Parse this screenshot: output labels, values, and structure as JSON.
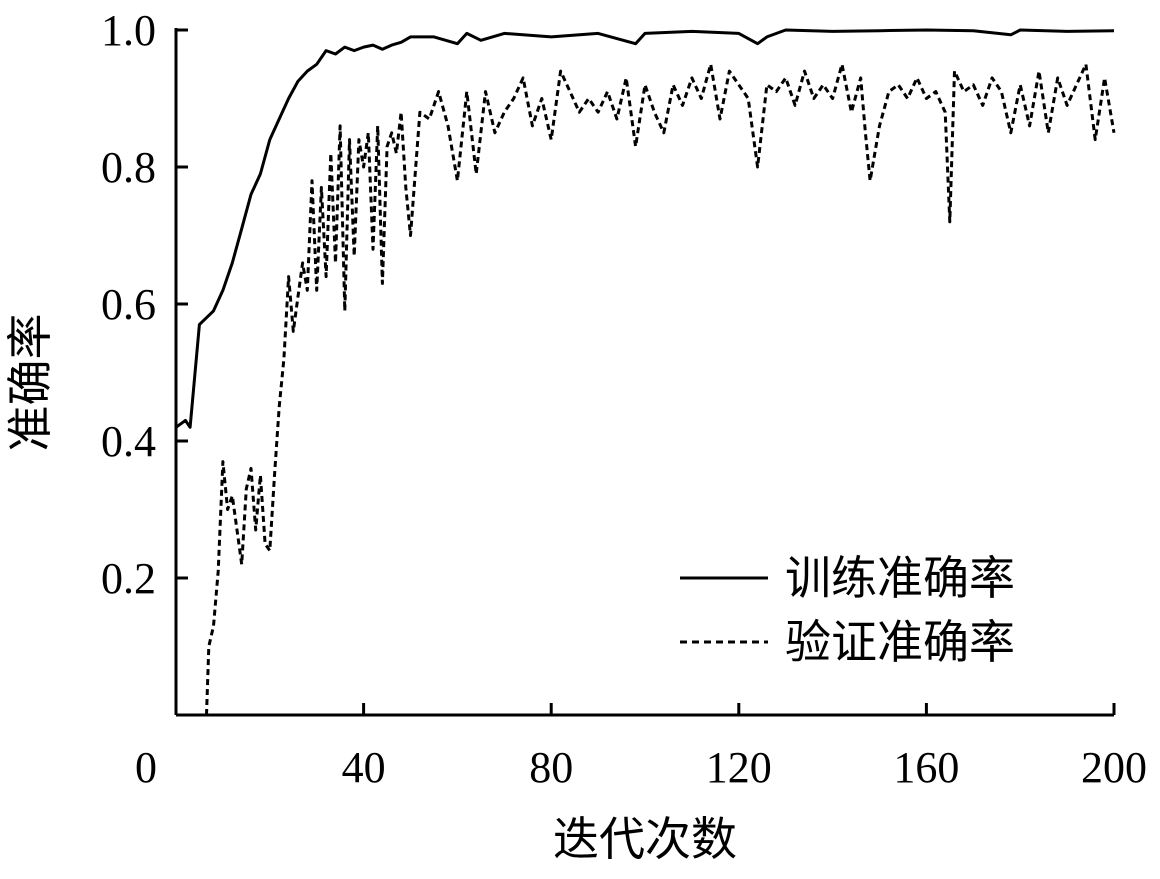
{
  "chart_data": {
    "type": "line",
    "xlabel": "迭代次数",
    "ylabel": "准确率",
    "xlim": [
      0,
      200
    ],
    "ylim": [
      0,
      1.0
    ],
    "xticks": [
      0,
      40,
      80,
      120,
      160,
      200
    ],
    "yticks": [
      0.2,
      0.4,
      0.6,
      0.8,
      1.0
    ],
    "x_tick_labels": [
      "0",
      "40",
      "80",
      "120",
      "160",
      "200"
    ],
    "y_tick_labels": [
      "0.2",
      "0.4",
      "0.6",
      "0.8",
      "1.0"
    ],
    "grid": false,
    "legend_position": "bottom-right",
    "series": [
      {
        "name": "训练准确率",
        "style": "solid",
        "color": "#000000",
        "x": [
          0,
          2,
          3,
          5,
          8,
          10,
          12,
          14,
          16,
          18,
          20,
          22,
          24,
          26,
          28,
          30,
          32,
          34,
          36,
          38,
          40,
          42,
          44,
          46,
          48,
          50,
          55,
          60,
          62,
          65,
          70,
          80,
          90,
          98,
          100,
          110,
          120,
          124,
          126,
          130,
          140,
          150,
          160,
          170,
          178,
          180,
          190,
          200
        ],
        "y": [
          0.42,
          0.43,
          0.42,
          0.57,
          0.59,
          0.62,
          0.66,
          0.71,
          0.76,
          0.79,
          0.84,
          0.87,
          0.9,
          0.925,
          0.94,
          0.95,
          0.97,
          0.965,
          0.975,
          0.97,
          0.975,
          0.978,
          0.972,
          0.978,
          0.982,
          0.99,
          0.99,
          0.98,
          0.995,
          0.985,
          0.995,
          0.99,
          0.995,
          0.98,
          0.995,
          0.998,
          0.995,
          0.98,
          0.99,
          1.0,
          0.998,
          0.999,
          1.0,
          0.999,
          0.993,
          1.0,
          0.998,
          0.999
        ]
      },
      {
        "name": "验证准确率",
        "style": "dashed",
        "color": "#000000",
        "x": [
          6.5,
          7,
          8,
          9,
          10,
          11,
          12,
          13,
          14,
          15,
          16,
          17,
          18,
          19,
          20,
          21,
          22,
          23,
          24,
          25,
          26,
          27,
          28,
          29,
          30,
          31,
          32,
          33,
          34,
          35,
          36,
          37,
          38,
          39,
          40,
          41,
          42,
          43,
          44,
          45,
          46,
          47,
          48,
          49,
          50,
          52,
          54,
          56,
          58,
          60,
          62,
          64,
          66,
          68,
          70,
          72,
          74,
          76,
          78,
          80,
          82,
          84,
          86,
          88,
          90,
          92,
          94,
          96,
          98,
          100,
          102,
          104,
          106,
          108,
          110,
          112,
          114,
          116,
          118,
          120,
          122,
          124,
          126,
          128,
          130,
          132,
          134,
          136,
          138,
          140,
          142,
          144,
          146,
          147,
          148,
          150,
          152,
          154,
          156,
          158,
          160,
          162,
          164,
          165,
          166,
          168,
          170,
          172,
          174,
          176,
          178,
          180,
          182,
          184,
          186,
          188,
          190,
          192,
          194,
          196,
          198,
          200
        ],
        "y": [
          0.0,
          0.1,
          0.13,
          0.21,
          0.37,
          0.3,
          0.32,
          0.27,
          0.22,
          0.33,
          0.36,
          0.27,
          0.35,
          0.25,
          0.24,
          0.35,
          0.45,
          0.52,
          0.64,
          0.56,
          0.61,
          0.66,
          0.62,
          0.78,
          0.62,
          0.77,
          0.64,
          0.82,
          0.66,
          0.86,
          0.59,
          0.84,
          0.67,
          0.84,
          0.8,
          0.85,
          0.68,
          0.86,
          0.63,
          0.83,
          0.85,
          0.82,
          0.88,
          0.77,
          0.7,
          0.88,
          0.87,
          0.91,
          0.86,
          0.78,
          0.91,
          0.79,
          0.91,
          0.85,
          0.88,
          0.9,
          0.93,
          0.86,
          0.9,
          0.84,
          0.94,
          0.91,
          0.88,
          0.9,
          0.88,
          0.91,
          0.87,
          0.93,
          0.83,
          0.92,
          0.88,
          0.85,
          0.92,
          0.89,
          0.93,
          0.9,
          0.95,
          0.87,
          0.94,
          0.92,
          0.9,
          0.8,
          0.92,
          0.91,
          0.93,
          0.89,
          0.94,
          0.9,
          0.92,
          0.9,
          0.95,
          0.88,
          0.93,
          0.85,
          0.78,
          0.86,
          0.91,
          0.92,
          0.9,
          0.93,
          0.9,
          0.91,
          0.88,
          0.72,
          0.94,
          0.91,
          0.92,
          0.89,
          0.93,
          0.91,
          0.85,
          0.92,
          0.86,
          0.94,
          0.85,
          0.93,
          0.89,
          0.92,
          0.95,
          0.84,
          0.93,
          0.85
        ]
      }
    ]
  }
}
